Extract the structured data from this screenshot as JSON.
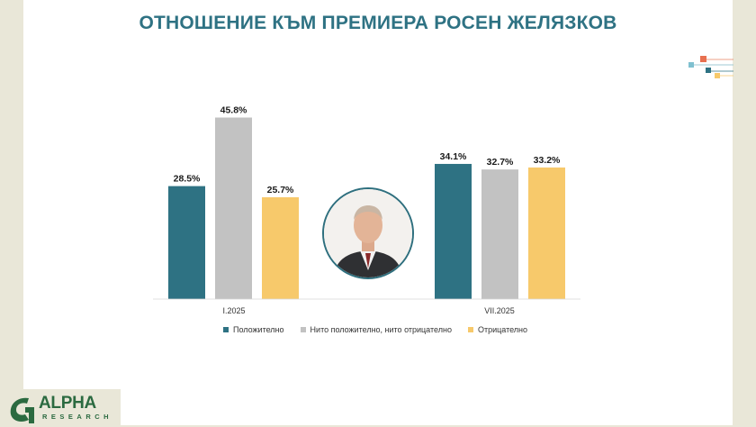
{
  "title": "ОТНОШЕНИЕ КЪМ ПРЕМИЕРА РОСЕН ЖЕЛЯЗКОВ",
  "logo": {
    "name": "ALPHA",
    "sub": "RESEARCH"
  },
  "colors": {
    "title": "#2e7283",
    "positive": "#2e7283",
    "neutral": "#c2c2c2",
    "negative": "#f7c96b"
  },
  "chart_data": {
    "type": "bar",
    "categories": [
      "I.2025",
      "VII.2025"
    ],
    "series": [
      {
        "name": "Положително",
        "values": [
          28.5,
          34.1
        ],
        "labels": [
          "28.5%",
          "34.1%"
        ],
        "color": "#2e7283"
      },
      {
        "name": "Нито положително, нито отрицателно",
        "values": [
          45.8,
          32.7
        ],
        "labels": [
          "45.8%",
          "32.7%"
        ],
        "color": "#c2c2c2"
      },
      {
        "name": "Отрицателно",
        "values": [
          25.7,
          33.2
        ],
        "labels": [
          "25.7%",
          "33.2%"
        ],
        "color": "#f7c96b"
      }
    ],
    "ylim": [
      0,
      50
    ],
    "legend_position": "bottom",
    "grid": false
  }
}
